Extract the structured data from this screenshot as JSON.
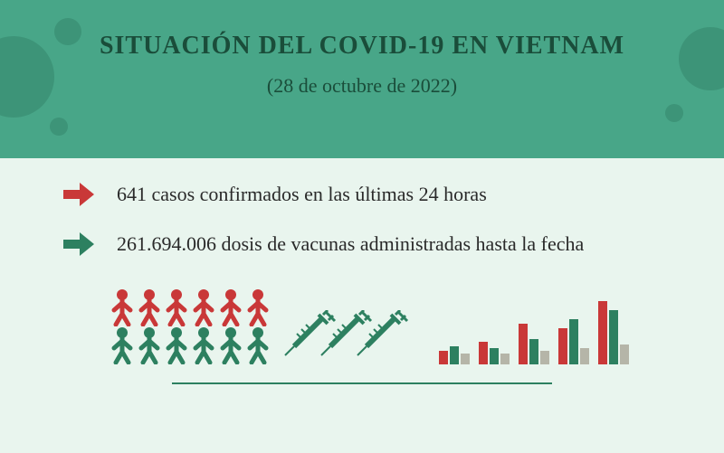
{
  "header": {
    "title": "SITUACIÓN DEL COVID-19 EN VIETNAM",
    "subtitle": "(28 de octubre de 2022)"
  },
  "stats": [
    {
      "arrow_color": "#c93838",
      "text": "641 casos confirmados en las últimas 24 horas"
    },
    {
      "arrow_color": "#2d8060",
      "text": "261.694.006 dosis de vacunas administradas hasta la fecha"
    }
  ],
  "colors": {
    "red": "#c93838",
    "green": "#2d8060",
    "gray": "#b5b5a8",
    "header_bg": "#48a688",
    "body_bg": "#e9f5ee",
    "title_color": "#1a4d3a"
  },
  "people": {
    "rows": 2,
    "per_row": 6,
    "row_colors": [
      "#c93838",
      "#2d8060"
    ]
  },
  "syringes": {
    "count": 3,
    "color": "#2d8060"
  },
  "chart": {
    "clusters": [
      {
        "red": 15,
        "green": 20,
        "gray": 12
      },
      {
        "red": 25,
        "green": 18,
        "gray": 12
      },
      {
        "red": 45,
        "green": 28,
        "gray": 15
      },
      {
        "red": 40,
        "green": 50,
        "gray": 18
      },
      {
        "red": 70,
        "green": 60,
        "gray": 22
      }
    ],
    "colors": {
      "red": "#c93838",
      "green": "#2d8060",
      "gray": "#b5b5a8"
    }
  }
}
